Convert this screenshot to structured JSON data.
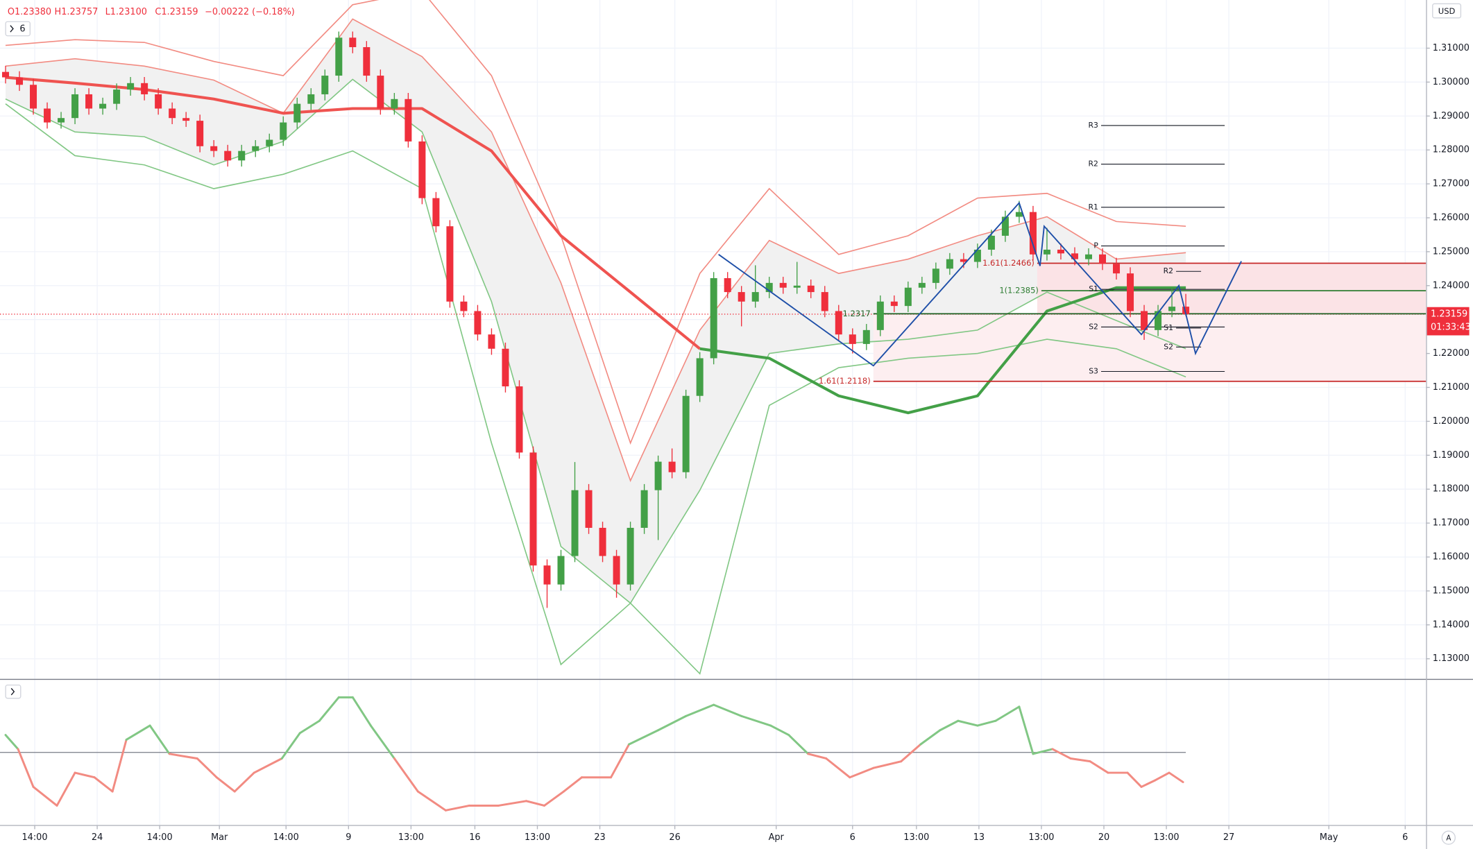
{
  "chart_data": {
    "type": "candlestick",
    "legend": [
      "O1.23380",
      "H1.23757",
      "L1.23100",
      "C1.23159",
      "−0.00222 (−0.18%)"
    ],
    "interval_button": "6",
    "currency": "USD",
    "scale_button": "A",
    "up_color": "#43a047",
    "down_color": "#ef2f3c",
    "grid": true,
    "xlim": [
      -0.4,
      102.3
    ],
    "ylim": [
      1.1242,
      1.3242
    ],
    "yticks": [
      {
        "value": 1.13,
        "label": "1.13000"
      },
      {
        "value": 1.14,
        "label": "1.14000"
      },
      {
        "value": 1.15,
        "label": "1.15000"
      },
      {
        "value": 1.16,
        "label": "1.16000"
      },
      {
        "value": 1.17,
        "label": "1.17000"
      },
      {
        "value": 1.18,
        "label": "1.18000"
      },
      {
        "value": 1.19,
        "label": "1.19000"
      },
      {
        "value": 1.2,
        "label": "1.20000"
      },
      {
        "value": 1.21,
        "label": "1.21000"
      },
      {
        "value": 1.22,
        "label": "1.22000"
      },
      {
        "value": 1.23,
        "label": "1.23000"
      },
      {
        "value": 1.24,
        "label": "1.24000"
      },
      {
        "value": 1.25,
        "label": "1.25000"
      },
      {
        "value": 1.26,
        "label": "1.26000"
      },
      {
        "value": 1.27,
        "label": "1.27000"
      },
      {
        "value": 1.28,
        "label": "1.28000"
      },
      {
        "value": 1.29,
        "label": "1.29000"
      },
      {
        "value": 1.3,
        "label": "1.30000"
      },
      {
        "value": 1.31,
        "label": "1.31000"
      }
    ],
    "xticks": [
      {
        "value": 2.1,
        "label": "14:00"
      },
      {
        "value": 6.6,
        "label": "24"
      },
      {
        "value": 11.1,
        "label": "14:00"
      },
      {
        "value": 15.4,
        "label": "Mar"
      },
      {
        "value": 20.2,
        "label": "14:00"
      },
      {
        "value": 24.7,
        "label": "9"
      },
      {
        "value": 29.2,
        "label": "13:00"
      },
      {
        "value": 33.8,
        "label": "16"
      },
      {
        "value": 38.3,
        "label": "13:00"
      },
      {
        "value": 42.8,
        "label": "23"
      },
      {
        "value": 48.2,
        "label": "26"
      },
      {
        "value": 55.5,
        "label": "Apr"
      },
      {
        "value": 61.0,
        "label": "6"
      },
      {
        "value": 65.6,
        "label": "13:00"
      },
      {
        "value": 70.1,
        "label": "13"
      },
      {
        "value": 74.6,
        "label": "13:00"
      },
      {
        "value": 79.1,
        "label": "20"
      },
      {
        "value": 83.6,
        "label": "13:00"
      },
      {
        "value": 88.1,
        "label": "27"
      },
      {
        "value": 95.3,
        "label": "May"
      },
      {
        "value": 100.8,
        "label": "6"
      }
    ],
    "open": [
      1.303,
      1.3014,
      1.2992,
      1.2922,
      1.2881,
      1.2894,
      1.2964,
      1.2922,
      1.2936,
      1.2978,
      1.2997,
      1.2964,
      1.2922,
      1.2894,
      1.2886,
      1.2811,
      1.2797,
      1.2769,
      1.2797,
      1.2811,
      1.283,
      1.2881,
      1.2936,
      1.2964,
      1.3019,
      1.3131,
      1.3103,
      1.3019,
      1.2922,
      1.295,
      1.2825,
      1.2658,
      1.2575,
      1.2353,
      1.2325,
      1.2256,
      1.2214,
      1.2103,
      1.1908,
      1.1575,
      1.1519,
      1.1603,
      1.1797,
      1.1686,
      1.1603,
      1.1519,
      1.1686,
      1.1797,
      1.1881,
      1.185,
      1.2075,
      1.2186,
      1.2422,
      1.2381,
      1.2353,
      1.2381,
      1.2408,
      1.2394,
      1.24,
      1.2381,
      1.2325,
      1.2256,
      1.2228,
      1.2269,
      1.2353,
      1.234,
      1.2394,
      1.2408,
      1.245,
      1.2478,
      1.247,
      1.2506,
      1.2547,
      1.2603,
      1.2617,
      1.2492,
      1.2506,
      1.2495,
      1.2478,
      1.2492,
      1.2464,
      1.2436,
      1.2325,
      1.2269,
      1.2325,
      1.2338
    ],
    "high": [
      1.3048,
      1.3032,
      1.301,
      1.294,
      1.2912,
      1.2982,
      1.2982,
      1.2954,
      1.2996,
      1.3015,
      1.3015,
      1.2982,
      1.294,
      1.2912,
      1.2904,
      1.2829,
      1.2815,
      1.2815,
      1.2829,
      1.2848,
      1.2899,
      1.2954,
      1.2982,
      1.3037,
      1.3149,
      1.3149,
      1.3121,
      1.3037,
      1.2968,
      1.2968,
      1.2843,
      1.2676,
      1.2593,
      1.2371,
      1.2343,
      1.2274,
      1.2232,
      1.2121,
      1.1926,
      1.1593,
      1.1621,
      1.188,
      1.1815,
      1.1704,
      1.1621,
      1.1704,
      1.1815,
      1.1899,
      1.192,
      1.2093,
      1.2204,
      1.244,
      1.244,
      1.2399,
      1.246,
      1.2426,
      1.2426,
      1.247,
      1.2418,
      1.2399,
      1.2343,
      1.2274,
      1.2287,
      1.2371,
      1.2371,
      1.2412,
      1.2426,
      1.2468,
      1.2496,
      1.2496,
      1.2524,
      1.2565,
      1.2621,
      1.265,
      1.2635,
      1.257,
      1.2524,
      1.2513,
      1.251,
      1.251,
      1.2482,
      1.2454,
      1.2343,
      1.2343,
      1.239,
      1.23757
    ],
    "low": [
      1.2996,
      1.2974,
      1.2904,
      1.2863,
      1.2863,
      1.2876,
      1.2904,
      1.2904,
      1.2918,
      1.296,
      1.2946,
      1.2904,
      1.2876,
      1.2868,
      1.2793,
      1.2779,
      1.2751,
      1.2751,
      1.2779,
      1.2793,
      1.2812,
      1.2863,
      1.2918,
      1.2946,
      1.3001,
      1.3085,
      1.3001,
      1.2904,
      1.2904,
      1.2807,
      1.264,
      1.2557,
      1.2335,
      1.2307,
      1.2238,
      1.2196,
      1.2085,
      1.189,
      1.1557,
      1.145,
      1.1501,
      1.1585,
      1.1668,
      1.1585,
      1.148,
      1.1501,
      1.1668,
      1.165,
      1.1832,
      1.1832,
      1.2057,
      1.2168,
      1.2363,
      1.228,
      1.2335,
      1.2363,
      1.2376,
      1.2376,
      1.2363,
      1.2307,
      1.2238,
      1.22,
      1.221,
      1.2251,
      1.2322,
      1.2322,
      1.2376,
      1.239,
      1.2432,
      1.2452,
      1.2452,
      1.2488,
      1.2529,
      1.2585,
      1.2474,
      1.2474,
      1.2477,
      1.246,
      1.246,
      1.2446,
      1.2418,
      1.2307,
      1.224,
      1.2251,
      1.2307,
      1.231
    ],
    "close": [
      1.3014,
      1.2992,
      1.2922,
      1.2881,
      1.2894,
      1.2964,
      1.2922,
      1.2936,
      1.2978,
      1.2997,
      1.2964,
      1.2922,
      1.2894,
      1.2886,
      1.2811,
      1.2797,
      1.2769,
      1.2797,
      1.2811,
      1.283,
      1.2881,
      1.2936,
      1.2964,
      1.3019,
      1.3131,
      1.3103,
      1.3019,
      1.2922,
      1.295,
      1.2825,
      1.2658,
      1.2575,
      1.2353,
      1.2325,
      1.2256,
      1.2214,
      1.2103,
      1.1908,
      1.1575,
      1.1519,
      1.1603,
      1.1797,
      1.1686,
      1.1603,
      1.1519,
      1.1686,
      1.1797,
      1.1881,
      1.185,
      1.2075,
      1.2186,
      1.2422,
      1.2381,
      1.2353,
      1.2381,
      1.2408,
      1.2394,
      1.24,
      1.2381,
      1.2325,
      1.2256,
      1.2228,
      1.2269,
      1.2353,
      1.234,
      1.2394,
      1.2408,
      1.245,
      1.2478,
      1.247,
      1.2506,
      1.2547,
      1.2603,
      1.2617,
      1.2492,
      1.2506,
      1.2495,
      1.2478,
      1.2492,
      1.2464,
      1.2436,
      1.2325,
      1.2269,
      1.2325,
      1.2338,
      1.23159
    ],
    "bands": {
      "x": [
        0,
        5,
        10,
        15,
        20,
        25,
        30,
        35,
        40,
        45,
        50,
        55,
        60,
        65,
        70,
        75,
        80,
        85
      ],
      "upper_outer": [
        1.3108,
        1.3125,
        1.3117,
        1.3061,
        1.3019,
        1.3228,
        1.3269,
        1.3019,
        1.2547,
        1.1936,
        1.2436,
        1.2686,
        1.2492,
        1.2547,
        1.2658,
        1.2672,
        1.2589,
        1.2575
      ],
      "upper_inner": [
        1.3047,
        1.3069,
        1.3047,
        1.3006,
        1.2908,
        1.3186,
        1.3075,
        1.2853,
        1.2408,
        1.1825,
        1.2269,
        1.2533,
        1.2436,
        1.2478,
        1.2547,
        1.2603,
        1.2478,
        1.2497
      ],
      "lower_inner": [
        1.295,
        1.2853,
        1.2839,
        1.2756,
        1.2825,
        1.3008,
        1.2853,
        1.2353,
        1.1631,
        1.1464,
        1.1797,
        1.22,
        1.2228,
        1.2242,
        1.2269,
        1.2381,
        1.2297,
        1.2214
      ],
      "lower_outer": [
        1.2936,
        1.2783,
        1.2756,
        1.2686,
        1.2728,
        1.2797,
        1.2686,
        1.1936,
        1.1283,
        1.1464,
        1.1256,
        1.2047,
        1.2158,
        1.2186,
        1.22,
        1.2242,
        1.2214,
        1.2131
      ],
      "upper_color": "#f28b82",
      "lower_color": "#81c784",
      "fill": "#f1f1f1"
    },
    "moving_average": [
      {
        "color": "#ef5350",
        "x": [
          0,
          5,
          10,
          15,
          20,
          25,
          30,
          35,
          40,
          45,
          50
        ],
        "values": [
          1.3014,
          1.2997,
          1.2978,
          1.295,
          1.2908,
          1.2922,
          1.2922,
          1.2797,
          1.2547,
          1.2381,
          1.2214
        ]
      },
      {
        "color": "#43a047",
        "x": [
          50,
          55,
          60,
          65,
          70,
          75,
          80,
          85
        ],
        "values": [
          1.2214,
          1.2186,
          1.2075,
          1.2025,
          1.2075,
          1.2325,
          1.2394,
          1.2394
        ]
      }
    ],
    "zones": [
      {
        "from": 62.5,
        "top": 1.2317,
        "bottom": 1.2118,
        "color": "#fdeef0"
      },
      {
        "from": 74.3,
        "top": 1.2466,
        "bottom": 1.2317,
        "color": "#fbe3e6"
      }
    ],
    "levels": [
      {
        "value": 1.2466,
        "label": "1.61(1.2466)",
        "color": "#c62828",
        "from": 74.3
      },
      {
        "value": 1.2385,
        "label": "1(1.2385)",
        "color": "#2e7d32",
        "from": 74.6
      },
      {
        "value": 1.2317,
        "label": "1.2317",
        "color": "#1b5e20",
        "from": 62.5
      },
      {
        "value": 1.2118,
        "label": "1.61(1.2118)",
        "color": "#c62828",
        "from": 62.5
      }
    ],
    "pivots": [
      {
        "from": 78.9,
        "to": 87.8,
        "levels": [
          {
            "label": "R3",
            "value": 1.2872
          },
          {
            "label": "R2",
            "value": 1.2758
          },
          {
            "label": "R1",
            "value": 1.2631
          },
          {
            "label": "P",
            "value": 1.2517
          },
          {
            "label": "S1",
            "value": 1.2389
          },
          {
            "label": "S2",
            "value": 1.2278
          },
          {
            "label": "S3",
            "value": 1.2147
          }
        ]
      },
      {
        "from": 84.3,
        "to": 86.1,
        "levels": [
          {
            "label": "R2",
            "value": 1.2442
          },
          {
            "label": "S1",
            "value": 1.2275
          },
          {
            "label": "S2",
            "value": 1.2219
          }
        ]
      }
    ],
    "pattern": {
      "color": "#1e4fa8",
      "x": [
        51.35,
        62.5,
        73.0,
        74.5,
        74.8,
        81.8,
        84.5,
        85.7,
        89.0
      ],
      "y": [
        1.2492,
        1.2164,
        1.2644,
        1.2458,
        1.2575,
        1.2256,
        1.24,
        1.22,
        1.2472
      ]
    },
    "last_price": {
      "value": 1.23159,
      "countdown": "01:33:43",
      "color": "#ef2f3c"
    },
    "oscillator": {
      "ylim": [
        0,
        100
      ],
      "level": 50,
      "up_color": "#81c784",
      "down_color": "#f28b82",
      "x": [
        0,
        0.9,
        2.0,
        3.7,
        5.0,
        6.4,
        7.7,
        8.7,
        10.4,
        11.8,
        13.8,
        15.2,
        16.5,
        17.9,
        19.9,
        21.2,
        22.6,
        24.0,
        25.0,
        26.3,
        28.0,
        29.7,
        31.7,
        33.4,
        35.5,
        37.5,
        38.8,
        40.2,
        41.5,
        43.6,
        44.9,
        47.0,
        49.0,
        51.0,
        53.0,
        55.1,
        56.4,
        57.8,
        59.1,
        60.8,
        62.5,
        64.5,
        65.9,
        67.3,
        68.6,
        70.0,
        71.3,
        73.0,
        74.0,
        75.4,
        76.7,
        78.1,
        79.4,
        80.8,
        81.8,
        82.8,
        83.8,
        84.8
      ],
      "values": [
        62.1,
        52.3,
        26.1,
        13.1,
        35.9,
        32.7,
        22.9,
        58.8,
        68.6,
        49.0,
        45.8,
        32.7,
        22.9,
        35.9,
        45.8,
        63.4,
        71.9,
        88.2,
        88.2,
        68.6,
        45.8,
        22.9,
        9.8,
        13.1,
        13.1,
        16.3,
        13.1,
        22.9,
        32.7,
        32.7,
        55.6,
        65.4,
        75.2,
        83.0,
        75.2,
        68.6,
        62.1,
        49.0,
        45.8,
        32.7,
        39.2,
        43.8,
        55.6,
        65.4,
        71.9,
        68.6,
        71.9,
        81.7,
        49.0,
        52.3,
        45.8,
        43.8,
        35.9,
        35.9,
        26.1,
        30.7,
        35.9,
        29.4
      ]
    }
  }
}
